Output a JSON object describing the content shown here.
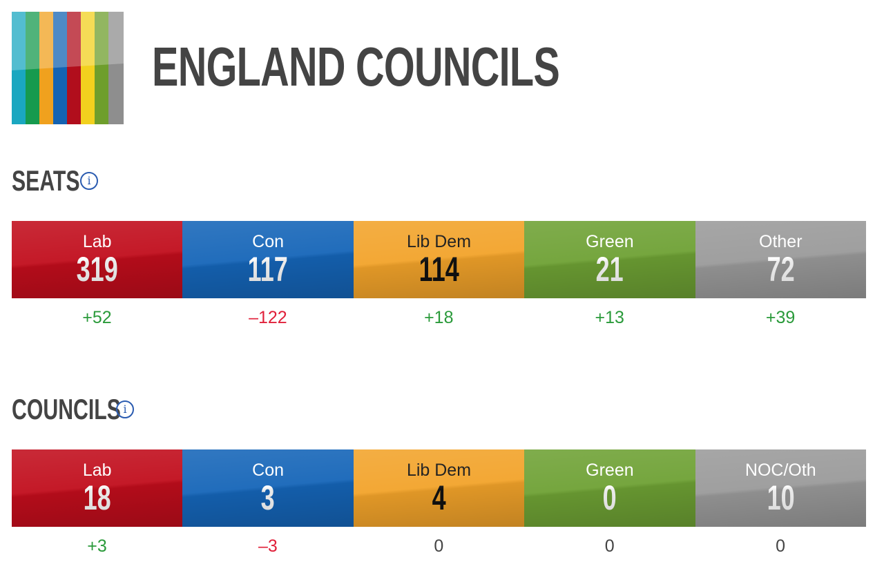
{
  "header": {
    "title": "ENGLAND COUNCILS"
  },
  "sections": [
    {
      "title": "SEATS",
      "parties": [
        {
          "name": "Lab",
          "value": 319,
          "change": "+52",
          "color": "#c10d1c"
        },
        {
          "name": "Con",
          "value": 117,
          "change": "–122",
          "color": "#1565b8"
        },
        {
          "name": "Lib Dem",
          "value": 114,
          "change": "+18",
          "color": "#f2a32a"
        },
        {
          "name": "Green",
          "value": 21,
          "change": "+13",
          "color": "#6ea134"
        },
        {
          "name": "Other",
          "value": 72,
          "change": "+39",
          "color": "#9a9a9a"
        }
      ]
    },
    {
      "title": "COUNCILS",
      "parties": [
        {
          "name": "Lab",
          "value": 18,
          "change": "+3",
          "color": "#c10d1c"
        },
        {
          "name": "Con",
          "value": 3,
          "change": "–3",
          "color": "#1565b8"
        },
        {
          "name": "Lib Dem",
          "value": 4,
          "change": "0",
          "color": "#f2a32a"
        },
        {
          "name": "Green",
          "value": 0,
          "change": "0",
          "color": "#6ea134"
        },
        {
          "name": "NOC/Oth",
          "value": 10,
          "change": "0",
          "color": "#9a9a9a"
        }
      ]
    }
  ]
}
